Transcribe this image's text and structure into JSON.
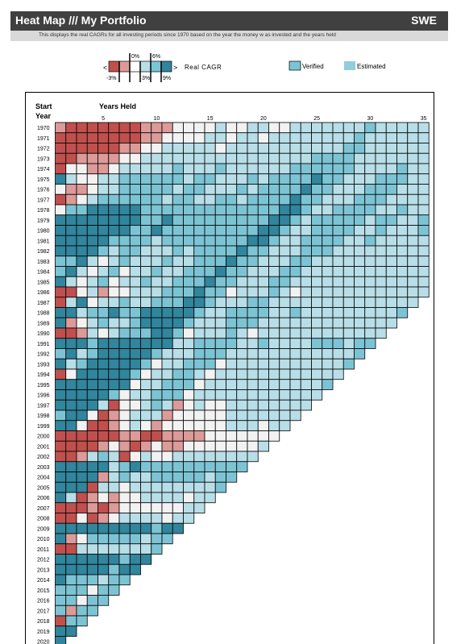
{
  "header": {
    "title": "Heat Map /// My Portfolio",
    "country": "SWE",
    "subtitle": "This displays the real CAGRs for all investing periods since 1970 based on the year the money w as invested and the years held"
  },
  "legend": {
    "less_symbol": "<",
    "greater_symbol": ">",
    "label": "Real CAGR",
    "tick_top": [
      "0%",
      "6%"
    ],
    "tick_bottom": [
      "-3%",
      "3%",
      "9%"
    ],
    "verified_label": "Verified",
    "estimated_label": "Estimated",
    "colors": {
      "neg_strong": "#c0504d",
      "neg_light": "#dc9a98",
      "zero": "#ffffff",
      "pos_light": "#b8dee8",
      "pos_mid": "#7cc4d4",
      "pos_strong": "#31859c",
      "estimated": "#92cddc"
    }
  },
  "chart_data": {
    "type": "heatmap",
    "title": "",
    "xlabel": "Years Held",
    "ylabel": "Start Year",
    "y_label_line1": "Start",
    "y_label_line2": "Year",
    "x_ticks": [
      5,
      10,
      15,
      20,
      25,
      30,
      35
    ],
    "x_range": [
      1,
      35
    ],
    "start_years": [
      1970,
      1971,
      1972,
      1973,
      1974,
      1975,
      1976,
      1977,
      1978,
      1979,
      1980,
      1981,
      1982,
      1983,
      1984,
      1985,
      1986,
      1987,
      1988,
      1989,
      1990,
      1991,
      1992,
      1993,
      1994,
      1995,
      1996,
      1997,
      1998,
      1999,
      2000,
      2001,
      2002,
      2003,
      2004,
      2005,
      2006,
      2007,
      2008,
      2009,
      2010,
      2011,
      2012,
      2013,
      2014,
      2015,
      2016,
      2017,
      2018,
      2019,
      2020
    ],
    "last_data_year": 2020,
    "max_years_held": 35,
    "color_scale": [
      {
        "max": -3,
        "color": "#c0504d"
      },
      {
        "max": 0,
        "color": "#dc9a98"
      },
      {
        "max": 3,
        "color": "#f2f2f2"
      },
      {
        "max": 6,
        "color": "#b8dee8"
      },
      {
        "max": 9,
        "color": "#7cc4d4"
      },
      {
        "max": 100,
        "color": "#31859c"
      }
    ],
    "annual_real_returns": [
      -1,
      -6,
      -10,
      -6,
      -8,
      10,
      0,
      -5,
      2,
      12,
      12,
      15,
      16,
      7,
      6,
      15,
      -5,
      -8,
      20,
      18,
      -20,
      14,
      8,
      22,
      -10,
      15,
      27,
      19,
      7,
      55,
      -15,
      -22,
      -37,
      25,
      18,
      26,
      18,
      -9,
      -40,
      47,
      18,
      -17,
      9,
      21,
      9,
      7,
      7,
      6,
      -10,
      27,
      13
    ]
  }
}
